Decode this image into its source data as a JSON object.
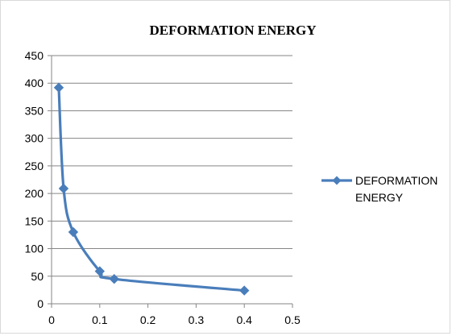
{
  "chart_data": {
    "type": "line",
    "title": "DEFORMATION ENERGY",
    "xlabel": "",
    "ylabel": "",
    "xlim": [
      0,
      0.5
    ],
    "ylim": [
      0,
      450
    ],
    "xticks": [
      0,
      0.1,
      0.2,
      0.3,
      0.4,
      0.5
    ],
    "yticks": [
      0,
      50,
      100,
      150,
      200,
      250,
      300,
      350,
      400,
      450
    ],
    "grid": "horizontal",
    "legend": "right",
    "smooth": true,
    "series": [
      {
        "name": "DEFORMATION ENERGY",
        "name_lines": [
          "DEFORMATION",
          "ENERGY"
        ],
        "color": "#4a7ebb",
        "marker": "diamond",
        "x": [
          0.015,
          0.025,
          0.045,
          0.1,
          0.13,
          0.4
        ],
        "y": [
          392,
          209,
          130,
          59,
          45,
          24
        ]
      }
    ]
  }
}
